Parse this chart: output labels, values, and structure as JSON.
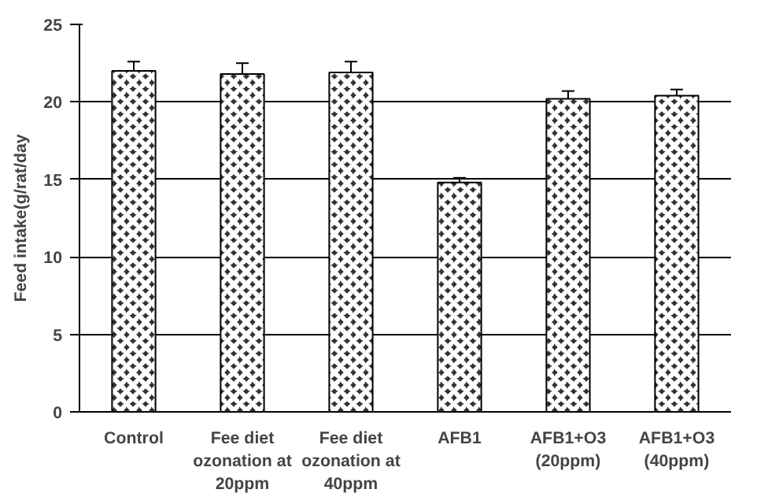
{
  "chart_data": {
    "type": "bar",
    "ylabel": "Feed intake(g/rat/day",
    "categories": [
      "Control",
      "Fee diet\nozonation at\n20ppm",
      "Fee diet\nozonation at\n40ppm",
      "AFB1",
      "AFB1+O3\n(20ppm)",
      "AFB1+O3\n(40ppm)"
    ],
    "values": [
      22.0,
      21.8,
      21.9,
      14.8,
      20.2,
      20.4
    ],
    "errors": [
      0.6,
      0.7,
      0.7,
      0.3,
      0.5,
      0.4
    ],
    "color": "#333333",
    "ylim": [
      0,
      25
    ],
    "yticks": [
      0,
      5,
      10,
      15,
      20,
      25
    ],
    "grid": "y"
  }
}
